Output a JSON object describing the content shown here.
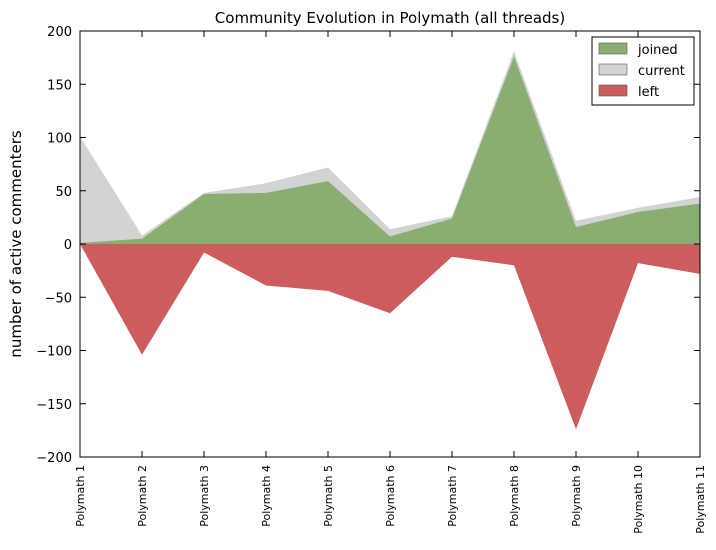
{
  "chart_data": {
    "type": "area",
    "title": "Community Evolution in Polymath (all threads)",
    "xlabel": "",
    "ylabel": "number of active commenters",
    "ylim": [
      -200,
      200
    ],
    "yticks": [
      -200,
      -150,
      -100,
      -50,
      0,
      50,
      100,
      150,
      200
    ],
    "categories": [
      "Polymath 1",
      "Polymath 2",
      "Polymath 3",
      "Polymath 4",
      "Polymath 5",
      "Polymath 6",
      "Polymath 7",
      "Polymath 8",
      "Polymath 9",
      "Polymath 10",
      "Polymath 11"
    ],
    "series": [
      {
        "name": "joined",
        "color": "#8aae72",
        "values": [
          1,
          5,
          47,
          48,
          59,
          7,
          24,
          176,
          16,
          30,
          38
        ]
      },
      {
        "name": "current",
        "color": "#d3d3d3",
        "values": [
          101,
          8,
          48,
          57,
          72,
          14,
          26,
          181,
          22,
          34,
          44
        ]
      },
      {
        "name": "left",
        "color": "#cd5c5c",
        "values": [
          0,
          -104,
          -8,
          -39,
          -44,
          -65,
          -12,
          -20,
          -174,
          -18,
          -28
        ]
      }
    ],
    "legend_position": "top-right",
    "grid": false
  }
}
